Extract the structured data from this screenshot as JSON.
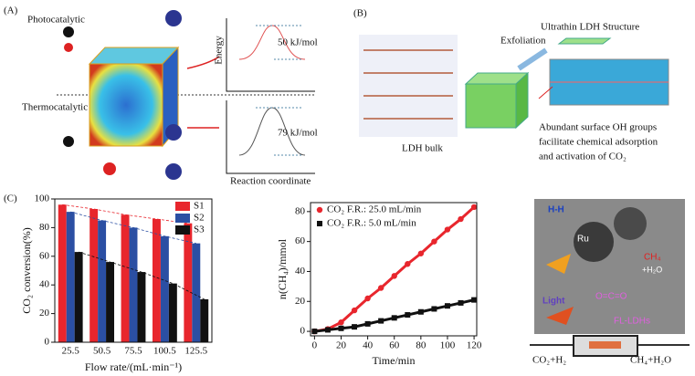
{
  "panel_a": {
    "label": "(A)",
    "photocatalytic": "Photocatalytic",
    "thermocatalytic": "Thermocatalytic",
    "energy": "Energy",
    "barrier_photo": "50 kJ/mol",
    "barrier_thermo": "79 kJ/mol",
    "reaction_coordinate": "Reaction coordinate"
  },
  "panel_b": {
    "label": "(B)",
    "ultrathin": "Ultrathin LDH Structure",
    "exfoliation": "Exfoliation",
    "bulk": "LDH bulk",
    "note": [
      "Abundant surface OH groups",
      "facilitate chemical adsorption",
      "and activation of CO₂"
    ]
  },
  "panel_c": {
    "label": "(C)",
    "image_labels": {
      "hh": "H-H",
      "ru": "Ru",
      "ch4": "CH₄",
      "h2o": "+H₂O",
      "co2": "O=C=O",
      "light": "Light",
      "fl": "FL-LDHs"
    },
    "inlet": "CO₂+H₂",
    "outlet": "CH₄+H₂O"
  },
  "chart_data": [
    {
      "type": "bar",
      "y_label": "CO₂ conversion(%)",
      "x_label": "Flow rate/(mL·min⁻¹)",
      "categories": [
        "25.5",
        "50.5",
        "75.5",
        "100.5",
        "125.5"
      ],
      "series": [
        {
          "name": "S1",
          "color": "#e8262d",
          "values": [
            96,
            93,
            89,
            86,
            83
          ]
        },
        {
          "name": "S2",
          "color": "#2b4fa3",
          "values": [
            91,
            85,
            80,
            74,
            69
          ]
        },
        {
          "name": "S3",
          "color": "#111111",
          "values": [
            63,
            56,
            49,
            41,
            30
          ]
        }
      ],
      "ylim": [
        0,
        100
      ],
      "yticks": [
        0,
        20,
        40,
        60,
        80,
        100
      ],
      "legend": "upper right"
    },
    {
      "type": "line",
      "y_label": "n(CH₄)/mmol",
      "x_label": "Time/min",
      "x": [
        0,
        10,
        20,
        30,
        40,
        50,
        60,
        70,
        80,
        90,
        100,
        110,
        120
      ],
      "series": [
        {
          "name": "CO₂ F.R.: 25.0 mL/min",
          "color": "#e8262d",
          "marker": "circle",
          "values": [
            0,
            1.5,
            6,
            14,
            22,
            29,
            37,
            45,
            52,
            60,
            68,
            75,
            83
          ]
        },
        {
          "name": "CO₂ F.R.: 5.0 mL/min",
          "color": "#111111",
          "marker": "square",
          "values": [
            0,
            1,
            2,
            3,
            5,
            7,
            9,
            11,
            13,
            15,
            17,
            19,
            21
          ]
        }
      ],
      "xlim": [
        -3,
        122
      ],
      "ylim": [
        -3,
        86
      ],
      "xticks": [
        0,
        20,
        40,
        60,
        80,
        100,
        120
      ],
      "yticks": [
        0,
        20,
        40,
        60,
        80
      ],
      "legend": "upper left"
    }
  ]
}
